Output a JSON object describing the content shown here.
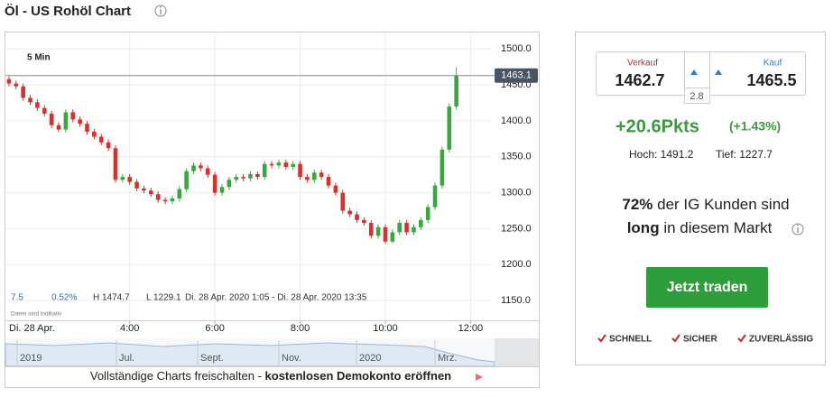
{
  "title": "Öl - US Rohöl Chart",
  "chart_data": {
    "type": "candlestick",
    "interval_label": "5 Min",
    "x": [
      "1:10",
      "1:20",
      "1:30",
      "1:40",
      "1:50",
      "2:00",
      "2:10",
      "2:20",
      "2:30",
      "2:40",
      "2:50",
      "3:00",
      "3:10",
      "3:20",
      "3:30",
      "3:40",
      "3:50",
      "4:00",
      "4:10",
      "4:20",
      "4:30",
      "4:40",
      "4:50",
      "5:00",
      "5:10",
      "5:20",
      "5:30",
      "5:40",
      "5:50",
      "6:00",
      "6:10",
      "6:20",
      "6:30",
      "6:40",
      "6:50",
      "7:00",
      "7:10",
      "7:20",
      "7:30",
      "7:40",
      "7:50",
      "8:00",
      "8:10",
      "8:20",
      "8:30",
      "8:40",
      "8:50",
      "9:00",
      "9:10",
      "9:20",
      "9:30",
      "9:40",
      "9:50",
      "10:00",
      "10:10",
      "10:20",
      "10:30",
      "10:40",
      "10:50",
      "11:00",
      "11:10",
      "11:20",
      "11:30",
      "11:40"
    ],
    "open": [
      1458,
      1452,
      1448,
      1432,
      1426,
      1418,
      1410,
      1394,
      1388,
      1412,
      1402,
      1396,
      1385,
      1378,
      1370,
      1362,
      1318,
      1322,
      1315,
      1306,
      1303,
      1298,
      1290,
      1288,
      1292,
      1305,
      1330,
      1338,
      1334,
      1325,
      1300,
      1308,
      1318,
      1322,
      1320,
      1326,
      1322,
      1340,
      1338,
      1342,
      1336,
      1340,
      1322,
      1318,
      1328,
      1322,
      1310,
      1300,
      1275,
      1270,
      1262,
      1258,
      1240,
      1252,
      1232,
      1245,
      1258,
      1245,
      1252,
      1262,
      1280,
      1310,
      1360,
      1420
    ],
    "high": [
      1462,
      1456,
      1452,
      1436,
      1430,
      1422,
      1414,
      1398,
      1416,
      1416,
      1406,
      1400,
      1389,
      1382,
      1374,
      1366,
      1326,
      1326,
      1319,
      1310,
      1307,
      1302,
      1294,
      1296,
      1309,
      1334,
      1342,
      1342,
      1338,
      1329,
      1312,
      1322,
      1326,
      1326,
      1330,
      1330,
      1344,
      1344,
      1346,
      1346,
      1344,
      1344,
      1326,
      1332,
      1332,
      1326,
      1314,
      1304,
      1279,
      1274,
      1266,
      1262,
      1256,
      1256,
      1249,
      1262,
      1262,
      1256,
      1266,
      1284,
      1314,
      1364,
      1424,
      1474.7
    ],
    "low": [
      1448,
      1444,
      1428,
      1422,
      1414,
      1406,
      1390,
      1384,
      1384,
      1398,
      1392,
      1381,
      1374,
      1366,
      1358,
      1314,
      1314,
      1311,
      1302,
      1299,
      1294,
      1286,
      1284,
      1284,
      1288,
      1301,
      1326,
      1330,
      1321,
      1296,
      1296,
      1304,
      1314,
      1316,
      1316,
      1318,
      1318,
      1334,
      1334,
      1332,
      1332,
      1318,
      1314,
      1314,
      1318,
      1306,
      1296,
      1271,
      1266,
      1258,
      1254,
      1236,
      1236,
      1229.1,
      1230,
      1241,
      1241,
      1241,
      1248,
      1258,
      1276,
      1306,
      1356,
      1416
    ],
    "close": [
      1452,
      1448,
      1432,
      1426,
      1418,
      1410,
      1394,
      1388,
      1412,
      1402,
      1396,
      1385,
      1378,
      1370,
      1362,
      1318,
      1322,
      1315,
      1306,
      1303,
      1298,
      1290,
      1288,
      1292,
      1305,
      1330,
      1338,
      1334,
      1325,
      1300,
      1308,
      1318,
      1322,
      1320,
      1326,
      1322,
      1340,
      1338,
      1342,
      1336,
      1340,
      1322,
      1318,
      1328,
      1322,
      1310,
      1300,
      1275,
      1270,
      1262,
      1258,
      1240,
      1252,
      1232,
      1245,
      1258,
      1245,
      1252,
      1262,
      1280,
      1310,
      1360,
      1420,
      1463.1
    ],
    "up_color": "#3aa641",
    "down_color": "#d9302b",
    "last_price": 1463.1,
    "ylim": [
      1135,
      1518
    ],
    "yticks": [
      {
        "value": 1150,
        "label": "1150.0"
      },
      {
        "value": 1200,
        "label": "1200.0"
      },
      {
        "value": 1250,
        "label": "1250.0"
      },
      {
        "value": 1300,
        "label": "1300.0"
      },
      {
        "value": 1350,
        "label": "1350.0"
      },
      {
        "value": 1400,
        "label": "1400.0"
      },
      {
        "value": 1450,
        "label": "1450.0"
      },
      {
        "value": 1500,
        "label": "1500.0"
      }
    ],
    "xlim": [
      "1:05",
      "12:30"
    ],
    "xticks": [
      "4:00",
      "6:00",
      "8:00",
      "10:00",
      "12:00"
    ],
    "date_label": "Di. 28 Apr.",
    "grid": true,
    "stats": [
      "7.5",
      "0.52%",
      "H 1474.7",
      "L 1229.1",
      "Di. 28 Apr. 2020 1:05 - Di. 28 Apr. 2020 13:35"
    ],
    "note": "Daten sind indikativ"
  },
  "navigator": {
    "labels": [
      "2019",
      "Jul.",
      "Sept.",
      "Nov.",
      "2020",
      "Mrz."
    ]
  },
  "banner": {
    "text": "Vollständige Charts freischalten - ",
    "link": "kostenlosen Demokonto eröffnen"
  },
  "panel": {
    "sell_label": "Verkauf",
    "sell": "1462.7",
    "buy_label": "Kauf",
    "buy": "1465.5",
    "spread": "2.8",
    "change": "+20.6Pkts",
    "change_pct": "(+1.43%)",
    "high": "Hoch: 1491.2",
    "low": "Tief: 1227.7",
    "sentiment": [
      [
        "72%",
        " der IG Kunden sind"
      ],
      [
        "long",
        " in diesem Markt"
      ]
    ],
    "button": "Jetzt traden",
    "features": [
      "SCHNELL",
      "SICHER",
      "ZUVERLÄSSIG"
    ]
  }
}
